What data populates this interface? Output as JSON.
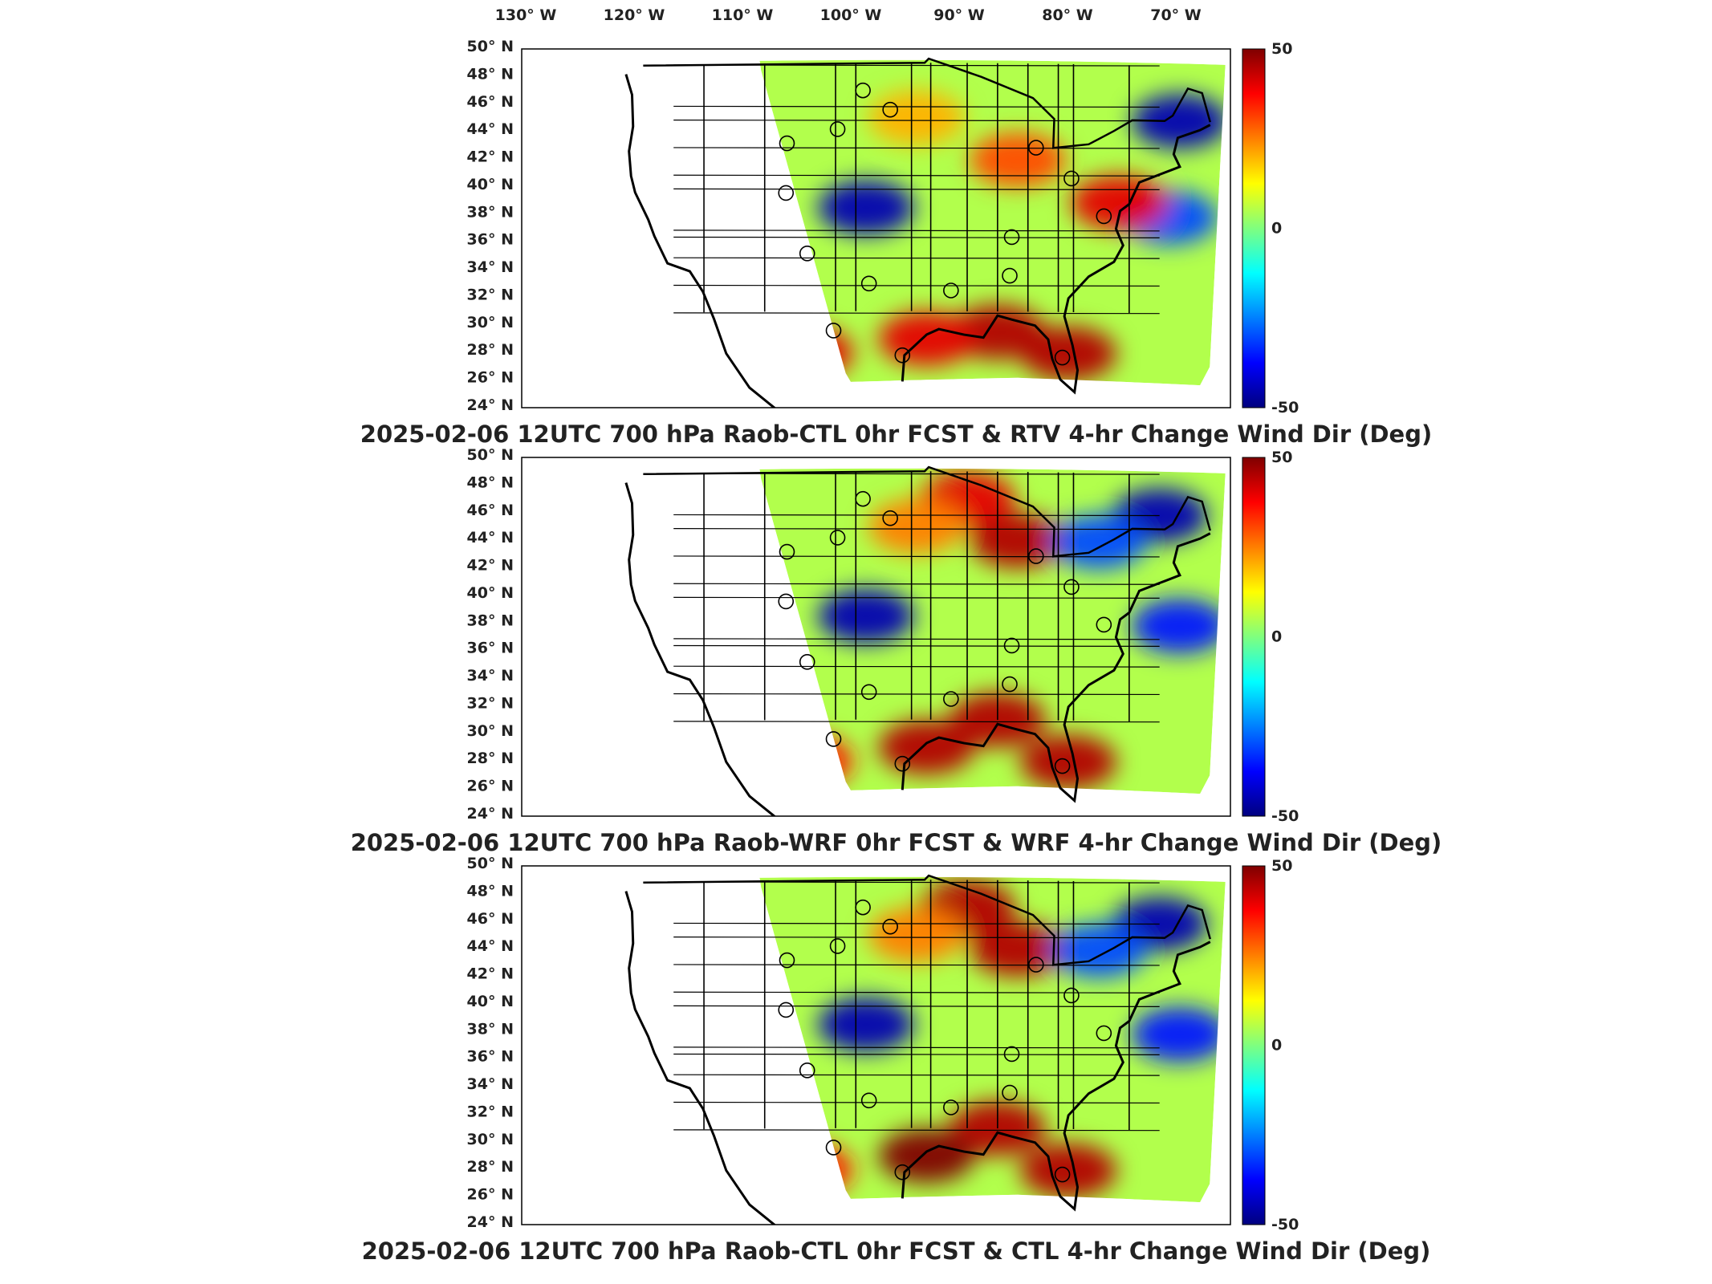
{
  "figure": {
    "longitude_ticks": [
      "130° W",
      "120° W",
      "110° W",
      "100° W",
      "90° W",
      "80° W",
      "70° W"
    ],
    "latitude_ticks": [
      "50° N",
      "48° N",
      "46° N",
      "44° N",
      "42° N",
      "40° N",
      "38° N",
      "36° N",
      "34° N",
      "32° N",
      "30° N",
      "28° N",
      "26° N",
      "24° N"
    ],
    "colorbar": {
      "colormap": "jet",
      "max_label": "50",
      "mid_label": "0",
      "min_label": "-50",
      "colors": [
        "#00007f",
        "#0000ff",
        "#007fff",
        "#00ffff",
        "#7fff7f",
        "#ffff00",
        "#ff7f00",
        "#ff0000",
        "#7f0000"
      ]
    },
    "panels": [
      {
        "title": "2025-02-06 12UTC 700 hPa Raob-CTL 0hr FCST & RTV 4-hr Change Wind Dir (Deg)"
      },
      {
        "title": "2025-02-06 12UTC 700 hPa Raob-WRF 0hr FCST & WRF 4-hr Change Wind Dir (Deg)"
      },
      {
        "title": "2025-02-06 12UTC 700 hPa Raob-CTL 0hr FCST & CTL 4-hr Change Wind Dir (Deg)"
      }
    ]
  },
  "chart_data": {
    "type": "heatmap",
    "variable": "4-hr Change Wind Dir (Deg)",
    "level": "700 hPa",
    "valid_time": "2025-02-06 12UTC",
    "color_range": [
      -50,
      50
    ],
    "lon_range_deg": [
      -130,
      -65
    ],
    "lat_range_deg": [
      24,
      50
    ],
    "raob_stations": [
      [
        -101.3,
        47.0
      ],
      [
        -98.6,
        45.6
      ],
      [
        -103.8,
        44.2
      ],
      [
        -108.8,
        43.2
      ],
      [
        -108.9,
        39.6
      ],
      [
        -106.8,
        35.2
      ],
      [
        -100.7,
        33.0
      ],
      [
        -104.2,
        29.6
      ],
      [
        -97.4,
        27.8
      ],
      [
        -92.6,
        32.5
      ],
      [
        -86.8,
        33.6
      ],
      [
        -86.6,
        36.4
      ],
      [
        -84.2,
        42.9
      ],
      [
        -80.7,
        40.7
      ],
      [
        -77.5,
        38.0
      ],
      [
        -81.6,
        27.7
      ]
    ],
    "panels": [
      {
        "name": "Raob-CTL 0hr FCST & RTV 4-hr Change",
        "anomalies": [
          [
            -101,
            38.5,
            -45
          ],
          [
            -88,
            29.5,
            45
          ],
          [
            -95,
            29,
            40
          ],
          [
            -86,
            42,
            30
          ],
          [
            -70,
            45,
            -45
          ],
          [
            -71,
            38,
            -30
          ],
          [
            -81,
            28,
            45
          ],
          [
            -107,
            28,
            40
          ],
          [
            -76,
            39,
            40
          ],
          [
            -96,
            45,
            20
          ]
        ]
      },
      {
        "name": "Raob-WRF 0hr FCST & WRF 4-hr Change",
        "anomalies": [
          [
            -101,
            38.5,
            -45
          ],
          [
            -91,
            47,
            40
          ],
          [
            -86,
            44,
            45
          ],
          [
            -88,
            31,
            45
          ],
          [
            -95,
            29,
            45
          ],
          [
            -72,
            46,
            -45
          ],
          [
            -78,
            44,
            -30
          ],
          [
            -70,
            38,
            -35
          ],
          [
            -81,
            28,
            45
          ],
          [
            -107,
            28,
            35
          ],
          [
            -96,
            45,
            25
          ]
        ]
      },
      {
        "name": "Raob-CTL 0hr FCST & CTL 4-hr Change",
        "anomalies": [
          [
            -101,
            38.5,
            -45
          ],
          [
            -91,
            47,
            45
          ],
          [
            -86,
            44,
            45
          ],
          [
            -88,
            31,
            45
          ],
          [
            -95,
            29,
            50
          ],
          [
            -72,
            46,
            -45
          ],
          [
            -78,
            44,
            -30
          ],
          [
            -70,
            38,
            -35
          ],
          [
            -81,
            28,
            45
          ],
          [
            -107,
            28,
            35
          ],
          [
            -96,
            45,
            25
          ]
        ]
      }
    ]
  }
}
